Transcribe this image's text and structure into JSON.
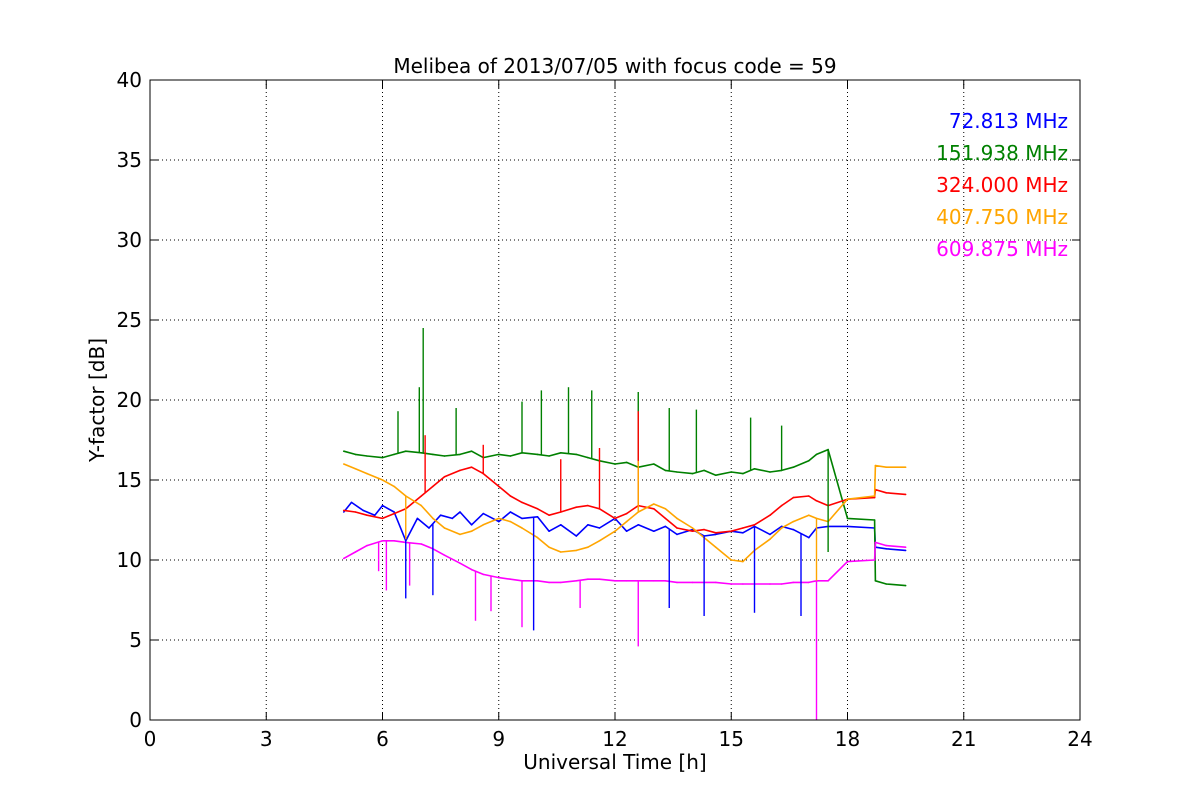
{
  "chart_data": {
    "type": "line",
    "title": "Melibea of 2013/07/05 with focus code = 59",
    "xlabel": "Universal Time [h]",
    "ylabel": "Y-factor [dB]",
    "xlim": [
      0,
      24
    ],
    "ylim": [
      0,
      40
    ],
    "xticks": [
      0,
      3,
      6,
      9,
      12,
      15,
      18,
      21,
      24
    ],
    "yticks": [
      0,
      5,
      10,
      15,
      20,
      25,
      30,
      35,
      40
    ],
    "grid": true,
    "legend_position": "top-right",
    "series": [
      {
        "name": "72.813 MHz",
        "color": "#0000ff",
        "x": [
          5.0,
          5.2,
          5.5,
          5.8,
          6.0,
          6.3,
          6.6,
          6.9,
          7.2,
          7.5,
          7.8,
          8.0,
          8.3,
          8.6,
          9.0,
          9.3,
          9.6,
          10.0,
          10.3,
          10.6,
          11.0,
          11.3,
          11.6,
          12.0,
          12.3,
          12.6,
          13.0,
          13.3,
          13.6,
          14.0,
          14.3,
          14.6,
          15.0,
          15.3,
          15.6,
          16.0,
          16.3,
          16.6,
          17.0,
          17.2,
          17.5,
          18.0,
          18.7,
          18.72,
          19.0,
          19.5
        ],
        "y": [
          13.0,
          13.6,
          13.1,
          12.8,
          13.4,
          13.0,
          11.2,
          12.6,
          12.0,
          12.8,
          12.6,
          13.0,
          12.2,
          12.9,
          12.4,
          13.0,
          12.6,
          12.7,
          11.8,
          12.2,
          11.5,
          12.2,
          12.0,
          12.6,
          11.8,
          12.2,
          11.8,
          12.1,
          11.6,
          11.9,
          11.5,
          11.6,
          11.8,
          11.7,
          12.1,
          11.6,
          12.1,
          11.9,
          11.4,
          12.0,
          12.1,
          12.1,
          12.0,
          10.8,
          10.7,
          10.6
        ]
      },
      {
        "name": "151.938 MHz",
        "color": "#008000",
        "x": [
          5.0,
          5.3,
          5.6,
          6.0,
          6.3,
          6.6,
          7.0,
          7.3,
          7.6,
          8.0,
          8.3,
          8.6,
          9.0,
          9.3,
          9.6,
          10.0,
          10.3,
          10.6,
          11.0,
          11.3,
          11.6,
          12.0,
          12.3,
          12.6,
          13.0,
          13.3,
          13.6,
          14.0,
          14.3,
          14.6,
          15.0,
          15.3,
          15.6,
          16.0,
          16.3,
          16.6,
          17.0,
          17.2,
          17.5,
          18.0,
          18.7,
          18.72,
          19.0,
          19.5
        ],
        "y": [
          16.8,
          16.6,
          16.5,
          16.4,
          16.6,
          16.8,
          16.7,
          16.6,
          16.5,
          16.6,
          16.8,
          16.4,
          16.6,
          16.5,
          16.7,
          16.6,
          16.5,
          16.7,
          16.6,
          16.4,
          16.2,
          16.0,
          16.1,
          15.8,
          16.0,
          15.6,
          15.5,
          15.4,
          15.6,
          15.3,
          15.5,
          15.4,
          15.7,
          15.5,
          15.6,
          15.8,
          16.2,
          16.6,
          16.9,
          12.6,
          12.5,
          8.7,
          8.5,
          8.4
        ]
      },
      {
        "name": "324.000 MHz",
        "color": "#ff0000",
        "x": [
          5.0,
          5.3,
          5.6,
          6.0,
          6.3,
          6.6,
          7.0,
          7.3,
          7.6,
          8.0,
          8.3,
          8.6,
          9.0,
          9.3,
          9.6,
          10.0,
          10.3,
          10.6,
          11.0,
          11.3,
          11.6,
          12.0,
          12.3,
          12.6,
          13.0,
          13.3,
          13.6,
          14.0,
          14.3,
          14.6,
          15.0,
          15.3,
          15.6,
          16.0,
          16.3,
          16.6,
          17.0,
          17.2,
          17.5,
          18.0,
          18.7,
          18.72,
          19.0,
          19.5
        ],
        "y": [
          13.1,
          13.0,
          12.8,
          12.6,
          12.9,
          13.2,
          14.0,
          14.6,
          15.2,
          15.6,
          15.8,
          15.4,
          14.6,
          14.0,
          13.6,
          13.2,
          12.8,
          13.0,
          13.3,
          13.4,
          13.2,
          12.6,
          12.9,
          13.4,
          13.2,
          12.6,
          12.0,
          11.8,
          11.9,
          11.7,
          11.8,
          12.0,
          12.2,
          12.8,
          13.4,
          13.9,
          14.0,
          13.7,
          13.4,
          13.8,
          13.9,
          14.4,
          14.2,
          14.1
        ]
      },
      {
        "name": "407.750 MHz",
        "color": "#ffa500",
        "x": [
          5.0,
          5.3,
          5.6,
          6.0,
          6.3,
          6.6,
          7.0,
          7.3,
          7.6,
          8.0,
          8.3,
          8.6,
          9.0,
          9.3,
          9.6,
          10.0,
          10.3,
          10.6,
          11.0,
          11.3,
          11.6,
          12.0,
          12.3,
          12.6,
          13.0,
          13.3,
          13.6,
          14.0,
          14.3,
          14.6,
          15.0,
          15.3,
          15.6,
          16.0,
          16.3,
          16.6,
          17.0,
          17.2,
          17.5,
          18.0,
          18.7,
          18.72,
          19.0,
          19.5
        ],
        "y": [
          16.0,
          15.7,
          15.4,
          15.0,
          14.6,
          14.0,
          13.4,
          12.6,
          12.0,
          11.6,
          11.8,
          12.2,
          12.6,
          12.4,
          12.0,
          11.4,
          10.8,
          10.5,
          10.6,
          10.8,
          11.2,
          11.8,
          12.4,
          13.0,
          13.5,
          13.2,
          12.6,
          12.0,
          11.4,
          10.8,
          10.0,
          9.9,
          10.6,
          11.3,
          12.0,
          12.4,
          12.8,
          12.6,
          12.4,
          13.8,
          14.0,
          15.9,
          15.8,
          15.8
        ]
      },
      {
        "name": "609.875 MHz",
        "color": "#ff00ff",
        "x": [
          5.0,
          5.3,
          5.6,
          6.0,
          6.3,
          6.6,
          7.0,
          7.3,
          7.6,
          8.0,
          8.3,
          8.6,
          9.0,
          9.3,
          9.6,
          10.0,
          10.3,
          10.6,
          11.0,
          11.3,
          11.6,
          12.0,
          12.3,
          12.6,
          13.0,
          13.3,
          13.6,
          14.0,
          14.3,
          14.6,
          15.0,
          15.3,
          15.6,
          16.0,
          16.3,
          16.6,
          17.0,
          17.2,
          17.5,
          18.0,
          18.7,
          18.72,
          19.0,
          19.5
        ],
        "y": [
          10.1,
          10.5,
          10.9,
          11.2,
          11.2,
          11.1,
          11.0,
          10.7,
          10.3,
          9.8,
          9.4,
          9.1,
          8.9,
          8.8,
          8.7,
          8.7,
          8.6,
          8.6,
          8.7,
          8.8,
          8.8,
          8.7,
          8.7,
          8.7,
          8.7,
          8.7,
          8.6,
          8.6,
          8.6,
          8.6,
          8.5,
          8.5,
          8.5,
          8.5,
          8.5,
          8.6,
          8.6,
          8.7,
          8.7,
          9.9,
          10.0,
          11.1,
          10.9,
          10.8
        ]
      }
    ],
    "spikes": [
      {
        "series": 0,
        "x": 6.6,
        "y": 7.6
      },
      {
        "series": 0,
        "x": 7.3,
        "y": 7.8
      },
      {
        "series": 0,
        "x": 9.9,
        "y": 5.6
      },
      {
        "series": 0,
        "x": 13.4,
        "y": 7.0
      },
      {
        "series": 0,
        "x": 14.3,
        "y": 6.5
      },
      {
        "series": 0,
        "x": 15.6,
        "y": 6.7
      },
      {
        "series": 0,
        "x": 16.8,
        "y": 6.5
      },
      {
        "series": 1,
        "x": 6.4,
        "y": 19.3
      },
      {
        "series": 1,
        "x": 7.05,
        "y": 24.5
      },
      {
        "series": 1,
        "x": 6.95,
        "y": 20.8
      },
      {
        "series": 1,
        "x": 7.9,
        "y": 19.5
      },
      {
        "series": 1,
        "x": 9.6,
        "y": 19.9
      },
      {
        "series": 1,
        "x": 10.1,
        "y": 20.6
      },
      {
        "series": 1,
        "x": 10.8,
        "y": 20.8
      },
      {
        "series": 1,
        "x": 11.4,
        "y": 20.6
      },
      {
        "series": 1,
        "x": 12.6,
        "y": 20.5
      },
      {
        "series": 1,
        "x": 13.4,
        "y": 19.5
      },
      {
        "series": 1,
        "x": 14.1,
        "y": 19.4
      },
      {
        "series": 1,
        "x": 15.5,
        "y": 18.9
      },
      {
        "series": 1,
        "x": 16.3,
        "y": 18.4
      },
      {
        "series": 1,
        "x": 17.5,
        "y": 10.5
      },
      {
        "series": 2,
        "x": 7.1,
        "y": 17.8
      },
      {
        "series": 2,
        "x": 8.6,
        "y": 17.2
      },
      {
        "series": 2,
        "x": 10.6,
        "y": 16.3
      },
      {
        "series": 2,
        "x": 11.6,
        "y": 17.0
      },
      {
        "series": 2,
        "x": 12.6,
        "y": 19.3
      },
      {
        "series": 3,
        "x": 6.6,
        "y": 11.3
      },
      {
        "series": 3,
        "x": 12.6,
        "y": 16.2
      },
      {
        "series": 3,
        "x": 17.2,
        "y": 8.7
      },
      {
        "series": 4,
        "x": 5.9,
        "y": 9.3
      },
      {
        "series": 4,
        "x": 6.1,
        "y": 8.1
      },
      {
        "series": 4,
        "x": 6.7,
        "y": 8.4
      },
      {
        "series": 4,
        "x": 8.4,
        "y": 6.2
      },
      {
        "series": 4,
        "x": 8.8,
        "y": 6.8
      },
      {
        "series": 4,
        "x": 9.6,
        "y": 5.8
      },
      {
        "series": 4,
        "x": 11.1,
        "y": 7.0
      },
      {
        "series": 4,
        "x": 12.6,
        "y": 4.6
      },
      {
        "series": 4,
        "x": 17.2,
        "y": 0.0
      }
    ]
  }
}
